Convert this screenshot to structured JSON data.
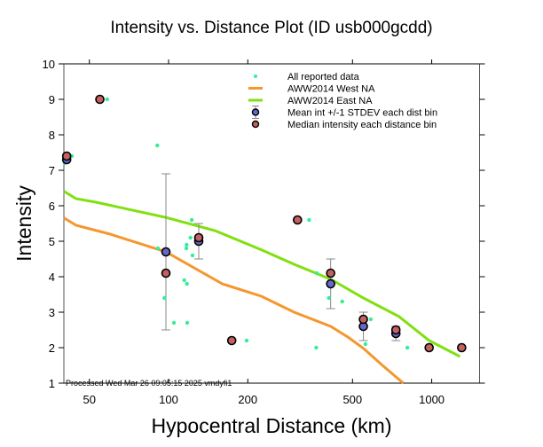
{
  "chart_data": {
    "type": "scatter",
    "title": "Intensity vs. Distance Plot (ID usb000gcdd)",
    "xlabel": "Hypocentral Distance (km)",
    "ylabel": "Intensity",
    "xscale": "log",
    "xlim": [
      40,
      1520
    ],
    "ylim": [
      1,
      10
    ],
    "xticks": [
      50,
      100,
      200,
      500,
      1000
    ],
    "xtick_labels": [
      "50",
      "100",
      "200",
      "500",
      "1000"
    ],
    "yticks": [
      1,
      2,
      3,
      4,
      5,
      6,
      7,
      8,
      9,
      10
    ],
    "ytick_labels": [
      "1",
      "2",
      "3",
      "4",
      "5",
      "6",
      "7",
      "8",
      "9",
      "10"
    ],
    "grid": false,
    "legend_position": "top-right",
    "footer": "Processed Wed Mar 26 09:05:15 2025 vmdyfi1",
    "colors": {
      "reported": "#33ee99",
      "west": "#f5962e",
      "east": "#80e010",
      "mean": "#6666cc",
      "median": "#c46060",
      "errorbar": "#888888"
    },
    "legend": [
      {
        "key": "reported",
        "label": "All reported data"
      },
      {
        "key": "west",
        "label": "AWW2014 West NA"
      },
      {
        "key": "east",
        "label": "AWW2014 East NA"
      },
      {
        "key": "mean",
        "label": "Mean int +/-1 STDEV each dist bin"
      },
      {
        "key": "median",
        "label": "Median intensity each distance bin"
      }
    ],
    "reported": [
      {
        "x": 40.3,
        "y": 7.2
      },
      {
        "x": 42.9,
        "y": 7.4
      },
      {
        "x": 58.4,
        "y": 9.0
      },
      {
        "x": 90.6,
        "y": 7.7
      },
      {
        "x": 91.1,
        "y": 4.8
      },
      {
        "x": 96.4,
        "y": 3.4
      },
      {
        "x": 104.8,
        "y": 2.7
      },
      {
        "x": 114.7,
        "y": 3.9
      },
      {
        "x": 117.4,
        "y": 3.8
      },
      {
        "x": 117.7,
        "y": 2.7
      },
      {
        "x": 116.8,
        "y": 4.8
      },
      {
        "x": 117.1,
        "y": 4.9
      },
      {
        "x": 121.1,
        "y": 5.1
      },
      {
        "x": 122.5,
        "y": 5.6
      },
      {
        "x": 123.3,
        "y": 4.6
      },
      {
        "x": 198,
        "y": 2.2
      },
      {
        "x": 342,
        "y": 5.6
      },
      {
        "x": 364,
        "y": 2.0
      },
      {
        "x": 365.6,
        "y": 4.1
      },
      {
        "x": 407,
        "y": 3.4
      },
      {
        "x": 457,
        "y": 3.3
      },
      {
        "x": 560,
        "y": 2.1
      },
      {
        "x": 587,
        "y": 2.8
      },
      {
        "x": 808,
        "y": 2.0
      }
    ],
    "west_na": [
      {
        "x": 40,
        "y": 5.66
      },
      {
        "x": 44.5,
        "y": 5.45
      },
      {
        "x": 60,
        "y": 5.2
      },
      {
        "x": 97.7,
        "y": 4.7
      },
      {
        "x": 160,
        "y": 3.8
      },
      {
        "x": 225,
        "y": 3.45
      },
      {
        "x": 300,
        "y": 3.0
      },
      {
        "x": 413,
        "y": 2.6
      },
      {
        "x": 480,
        "y": 2.3
      },
      {
        "x": 550,
        "y": 1.98
      },
      {
        "x": 650,
        "y": 1.5
      },
      {
        "x": 780,
        "y": 1.0
      }
    ],
    "east_na": [
      {
        "x": 40,
        "y": 6.41
      },
      {
        "x": 44.5,
        "y": 6.2
      },
      {
        "x": 53,
        "y": 6.1
      },
      {
        "x": 97.7,
        "y": 5.67
      },
      {
        "x": 150,
        "y": 5.3
      },
      {
        "x": 225,
        "y": 4.76
      },
      {
        "x": 300,
        "y": 4.35
      },
      {
        "x": 413,
        "y": 3.93
      },
      {
        "x": 550,
        "y": 3.4
      },
      {
        "x": 750,
        "y": 2.88
      },
      {
        "x": 978,
        "y": 2.2
      },
      {
        "x": 1280,
        "y": 1.75
      }
    ],
    "mean_bins": [
      {
        "x": 41,
        "y": 7.3,
        "sd": 0.0
      },
      {
        "x": 97.7,
        "y": 4.7,
        "sd": 2.2
      },
      {
        "x": 130.2,
        "y": 5.0,
        "sd": 0.5
      },
      {
        "x": 413,
        "y": 3.8,
        "sd": 0.7
      },
      {
        "x": 550,
        "y": 2.6,
        "sd": 0.4
      },
      {
        "x": 731,
        "y": 2.4,
        "sd": 0.2
      }
    ],
    "median_bins": [
      {
        "x": 41,
        "y": 7.4
      },
      {
        "x": 54.8,
        "y": 9.0
      },
      {
        "x": 97.7,
        "y": 4.1
      },
      {
        "x": 130.2,
        "y": 5.1
      },
      {
        "x": 173.8,
        "y": 2.2
      },
      {
        "x": 309,
        "y": 5.6
      },
      {
        "x": 413,
        "y": 4.1
      },
      {
        "x": 550,
        "y": 2.8
      },
      {
        "x": 731,
        "y": 2.5
      },
      {
        "x": 978,
        "y": 2.0
      },
      {
        "x": 1300,
        "y": 2.0
      }
    ]
  }
}
